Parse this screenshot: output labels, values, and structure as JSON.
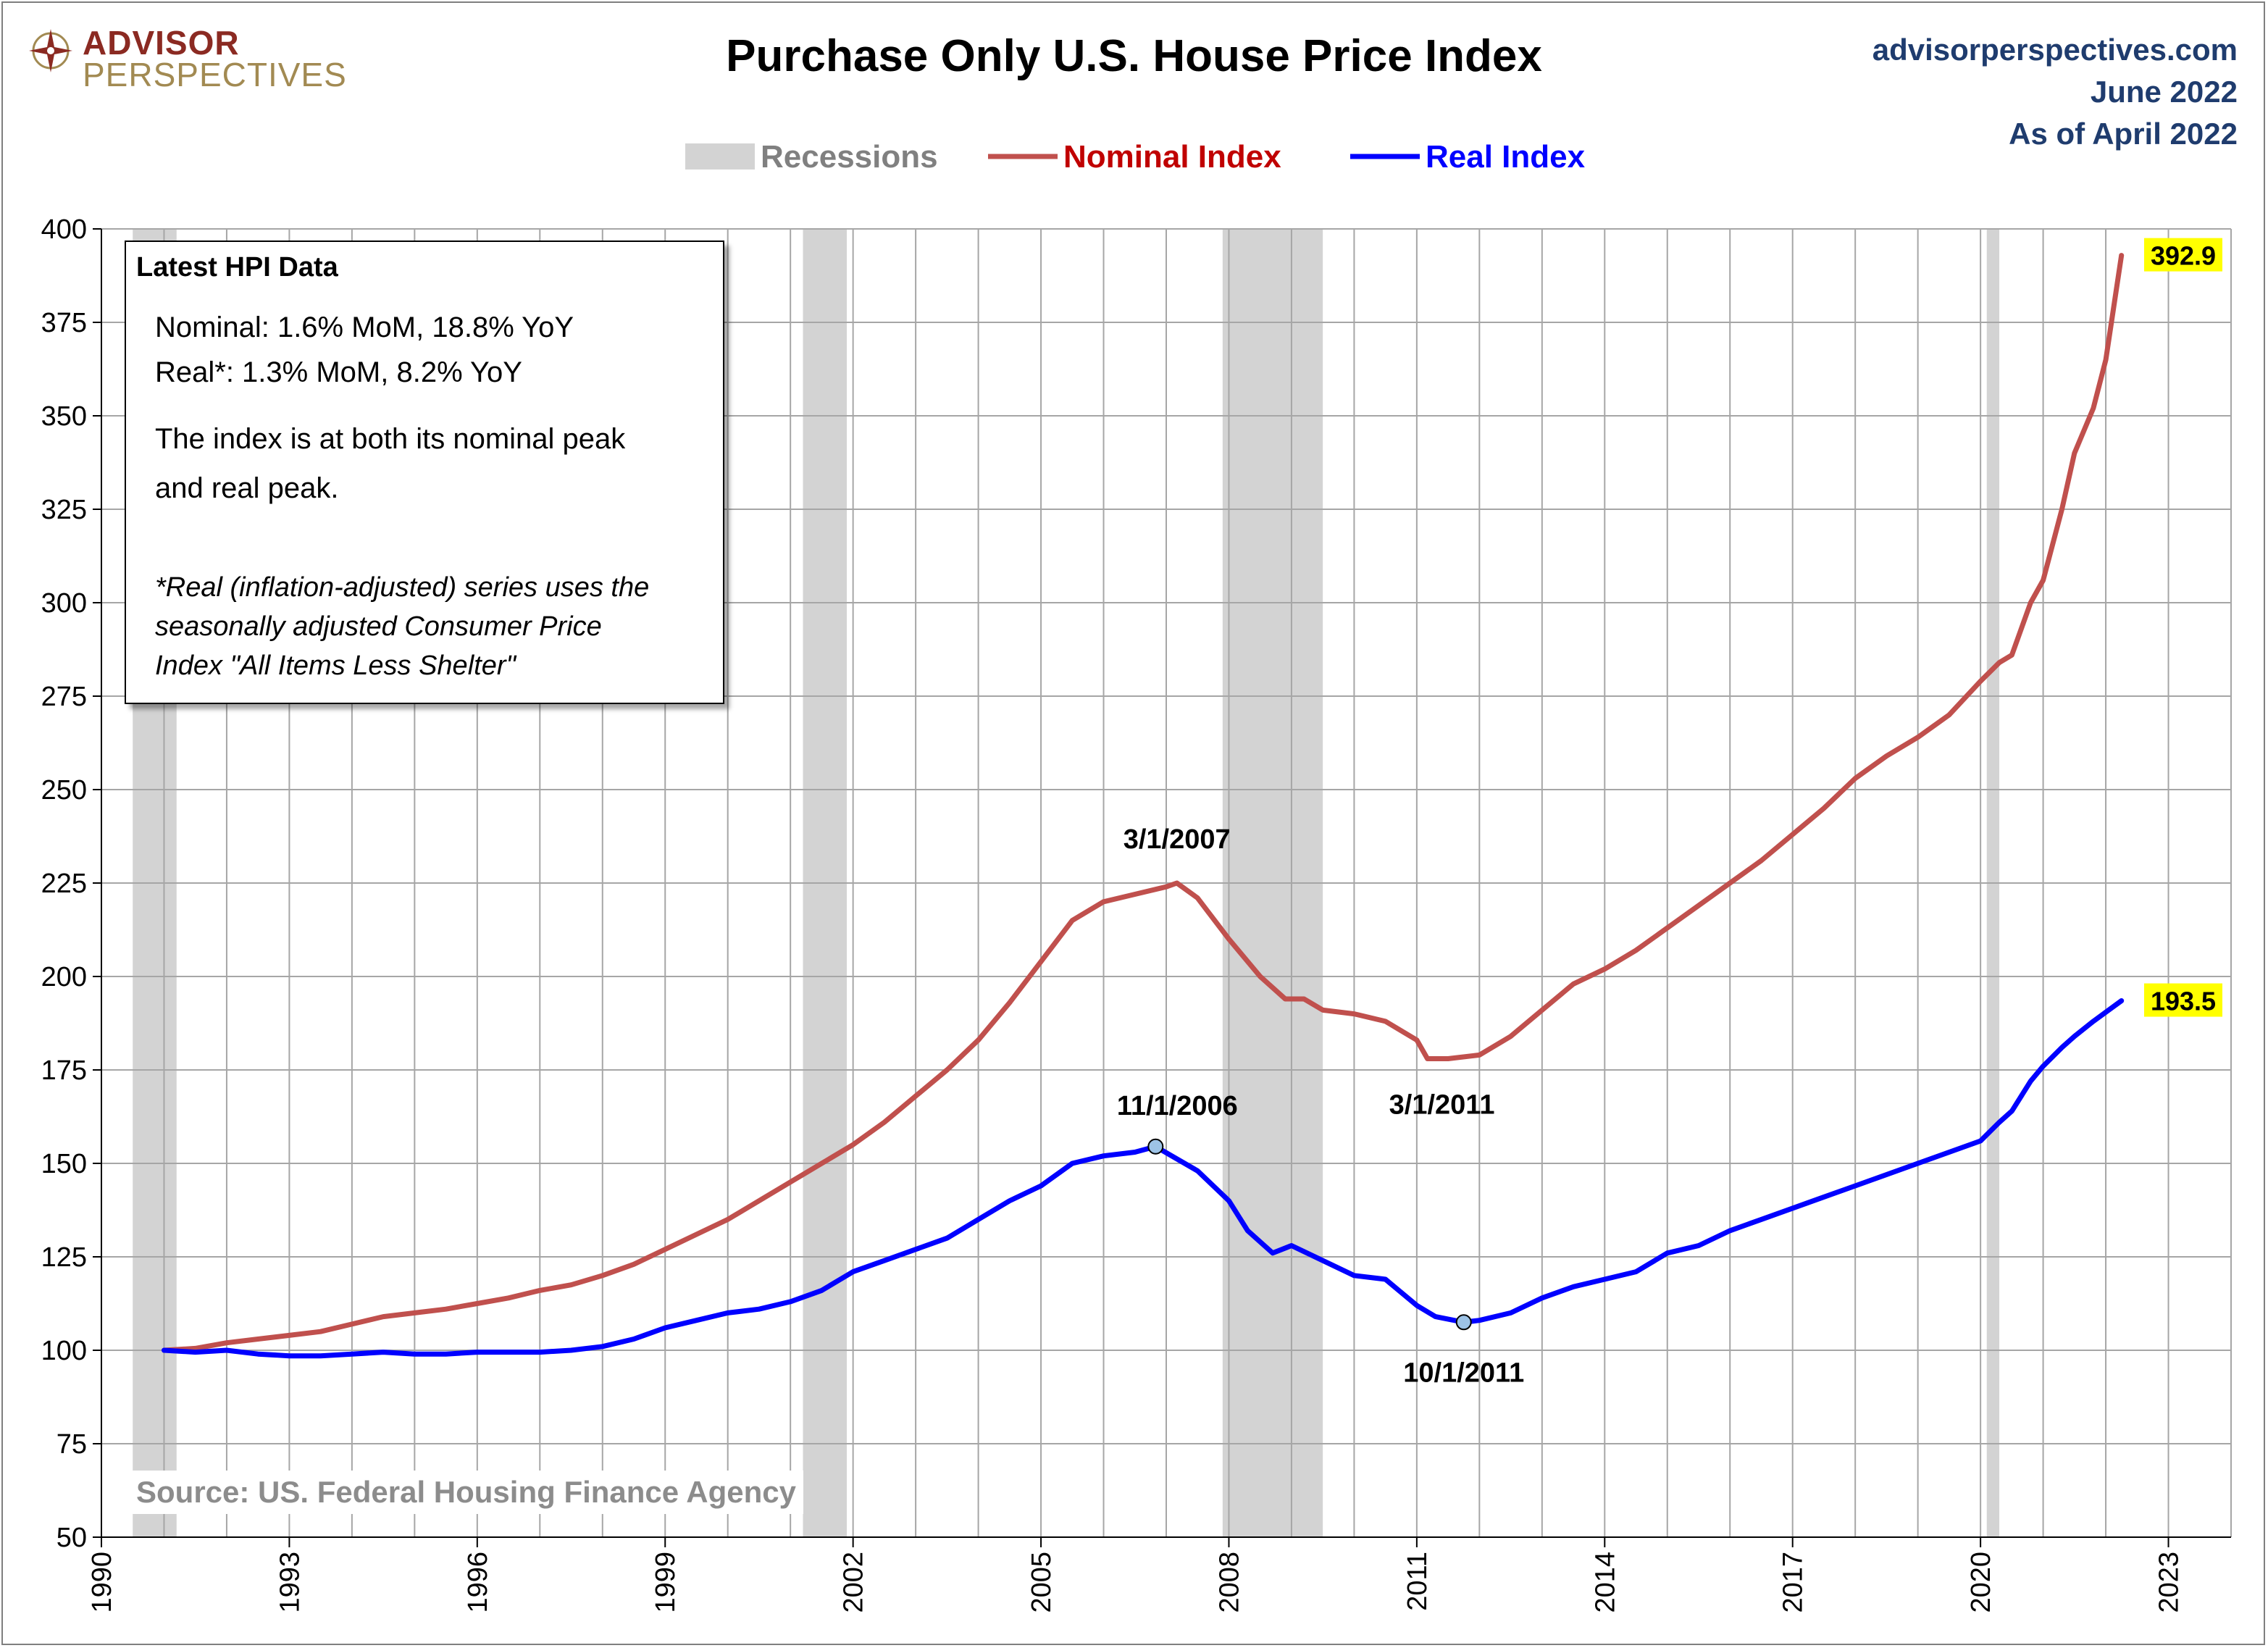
{
  "brand": {
    "line1": "ADVISOR",
    "line2": "PERSPECTIVES"
  },
  "title": "Purchase Only U.S. House Price Index",
  "site": {
    "url": "advisorperspectives.com",
    "date": "June 2022",
    "as_of": "As of April 2022"
  },
  "legend": [
    {
      "label": "Recessions",
      "color": "#d3d3d3",
      "text_color": "#808080"
    },
    {
      "label": "Nominal Index",
      "color": "#c0504d",
      "text_color": "#c00000"
    },
    {
      "label": "Real Index",
      "color": "#0000ff",
      "text_color": "#0000ff"
    }
  ],
  "infobox": {
    "title": "Latest HPI Data",
    "nominal": "Nominal:  1.6% MoM, 18.8% YoY",
    "real": "Real*:  1.3% MoM, 8.2% YoY",
    "text1": "The index is at both its nominal peak",
    "text2": "and real peak.",
    "note1": "*Real (inflation-adjusted) series uses the",
    "note2": "seasonally adjusted Consumer Price",
    "note3": "Index \"All Items Less Shelter\""
  },
  "source": "Source: US. Federal Housing Finance Agency",
  "chart_data": {
    "type": "line",
    "xlim": [
      1990,
      2024
    ],
    "ylim": [
      50,
      400
    ],
    "x_ticks": [
      1990,
      1993,
      1996,
      1999,
      2002,
      2005,
      2008,
      2011,
      2014,
      2017,
      2020,
      2023
    ],
    "y_ticks": [
      50,
      75,
      100,
      125,
      150,
      175,
      200,
      225,
      250,
      275,
      300,
      325,
      350,
      375,
      400
    ],
    "grid": true,
    "legend_position": "top",
    "recessions": [
      [
        1990.5,
        1991.2
      ],
      [
        2001.2,
        2001.9
      ],
      [
        2007.9,
        2009.5
      ],
      [
        2020.1,
        2020.3
      ]
    ],
    "series": [
      {
        "name": "Nominal Index",
        "color": "#c0504d",
        "points": [
          [
            1991.0,
            100
          ],
          [
            1991.5,
            100.5
          ],
          [
            1992.0,
            102
          ],
          [
            1992.5,
            103
          ],
          [
            1993.0,
            104
          ],
          [
            1993.5,
            105
          ],
          [
            1994.0,
            107
          ],
          [
            1994.5,
            109
          ],
          [
            1995.0,
            110
          ],
          [
            1995.5,
            111
          ],
          [
            1996.0,
            112.5
          ],
          [
            1996.5,
            114
          ],
          [
            1997.0,
            116
          ],
          [
            1997.5,
            117.5
          ],
          [
            1998.0,
            120
          ],
          [
            1998.5,
            123
          ],
          [
            1999.0,
            127
          ],
          [
            1999.5,
            131
          ],
          [
            2000.0,
            135
          ],
          [
            2000.5,
            140
          ],
          [
            2001.0,
            145
          ],
          [
            2001.5,
            150
          ],
          [
            2002.0,
            155
          ],
          [
            2002.5,
            161
          ],
          [
            2003.0,
            168
          ],
          [
            2003.5,
            175
          ],
          [
            2004.0,
            183
          ],
          [
            2004.5,
            193
          ],
          [
            2005.0,
            204
          ],
          [
            2005.5,
            215
          ],
          [
            2006.0,
            220
          ],
          [
            2006.5,
            222
          ],
          [
            2007.0,
            224
          ],
          [
            2007.17,
            225
          ],
          [
            2007.5,
            221
          ],
          [
            2008.0,
            210
          ],
          [
            2008.5,
            200
          ],
          [
            2008.9,
            194
          ],
          [
            2009.2,
            194
          ],
          [
            2009.5,
            191
          ],
          [
            2010.0,
            190
          ],
          [
            2010.5,
            188
          ],
          [
            2011.0,
            183
          ],
          [
            2011.17,
            178
          ],
          [
            2011.5,
            178
          ],
          [
            2012.0,
            179
          ],
          [
            2012.5,
            184
          ],
          [
            2013.0,
            191
          ],
          [
            2013.5,
            198
          ],
          [
            2014.0,
            202
          ],
          [
            2014.5,
            207
          ],
          [
            2015.0,
            213
          ],
          [
            2015.5,
            219
          ],
          [
            2016.0,
            225
          ],
          [
            2016.5,
            231
          ],
          [
            2017.0,
            238
          ],
          [
            2017.5,
            245
          ],
          [
            2018.0,
            253
          ],
          [
            2018.5,
            259
          ],
          [
            2019.0,
            264
          ],
          [
            2019.5,
            270
          ],
          [
            2020.0,
            279
          ],
          [
            2020.3,
            284
          ],
          [
            2020.5,
            286
          ],
          [
            2020.8,
            300
          ],
          [
            2021.0,
            306
          ],
          [
            2021.3,
            325
          ],
          [
            2021.5,
            340
          ],
          [
            2021.8,
            352
          ],
          [
            2022.0,
            365
          ],
          [
            2022.25,
            392.9
          ]
        ]
      },
      {
        "name": "Real Index",
        "color": "#0000ff",
        "points": [
          [
            1991.0,
            100
          ],
          [
            1991.5,
            99.5
          ],
          [
            1992.0,
            100
          ],
          [
            1992.5,
            99
          ],
          [
            1993.0,
            98.5
          ],
          [
            1993.5,
            98.5
          ],
          [
            1994.0,
            99
          ],
          [
            1994.5,
            99.5
          ],
          [
            1995.0,
            99
          ],
          [
            1995.5,
            99
          ],
          [
            1996.0,
            99.5
          ],
          [
            1996.5,
            99.5
          ],
          [
            1997.0,
            99.5
          ],
          [
            1997.5,
            100
          ],
          [
            1998.0,
            101
          ],
          [
            1998.5,
            103
          ],
          [
            1999.0,
            106
          ],
          [
            1999.5,
            108
          ],
          [
            2000.0,
            110
          ],
          [
            2000.5,
            111
          ],
          [
            2001.0,
            113
          ],
          [
            2001.5,
            116
          ],
          [
            2002.0,
            121
          ],
          [
            2002.5,
            124
          ],
          [
            2003.0,
            127
          ],
          [
            2003.5,
            130
          ],
          [
            2004.0,
            135
          ],
          [
            2004.5,
            140
          ],
          [
            2005.0,
            144
          ],
          [
            2005.5,
            150
          ],
          [
            2006.0,
            152
          ],
          [
            2006.5,
            153
          ],
          [
            2006.83,
            154.5
          ],
          [
            2007.5,
            148
          ],
          [
            2008.0,
            140
          ],
          [
            2008.3,
            132
          ],
          [
            2008.7,
            126
          ],
          [
            2009.0,
            128
          ],
          [
            2009.5,
            124
          ],
          [
            2010.0,
            120
          ],
          [
            2010.5,
            119
          ],
          [
            2011.0,
            112
          ],
          [
            2011.3,
            109
          ],
          [
            2011.75,
            107.5
          ],
          [
            2012.0,
            108
          ],
          [
            2012.5,
            110
          ],
          [
            2013.0,
            114
          ],
          [
            2013.5,
            117
          ],
          [
            2014.0,
            119
          ],
          [
            2014.5,
            121
          ],
          [
            2015.0,
            126
          ],
          [
            2015.5,
            128
          ],
          [
            2016.0,
            132
          ],
          [
            2016.5,
            135
          ],
          [
            2017.0,
            138
          ],
          [
            2017.5,
            141
          ],
          [
            2018.0,
            144
          ],
          [
            2018.5,
            147
          ],
          [
            2019.0,
            150
          ],
          [
            2019.5,
            153
          ],
          [
            2020.0,
            156
          ],
          [
            2020.3,
            161
          ],
          [
            2020.5,
            164
          ],
          [
            2020.8,
            172
          ],
          [
            2021.0,
            176
          ],
          [
            2021.3,
            181
          ],
          [
            2021.5,
            184
          ],
          [
            2021.8,
            188
          ],
          [
            2022.25,
            193.5
          ]
        ]
      }
    ],
    "annotations": [
      {
        "text": "3/1/2007",
        "series": "Nominal Index",
        "x": 2007.17,
        "y": 225,
        "marker": false
      },
      {
        "text": "3/1/2011",
        "series": "Nominal Index",
        "x": 2011.17,
        "y": 178,
        "marker": false
      },
      {
        "text": "11/1/2006",
        "series": "Real Index",
        "x": 2006.83,
        "y": 154.5,
        "marker": true
      },
      {
        "text": "10/1/2011",
        "series": "Real Index",
        "x": 2011.75,
        "y": 107.5,
        "marker": true
      }
    ],
    "end_labels": [
      {
        "text": "392.9",
        "series": "Nominal Index",
        "value": 392.9
      },
      {
        "text": "193.5",
        "series": "Real Index",
        "value": 193.5
      }
    ]
  }
}
